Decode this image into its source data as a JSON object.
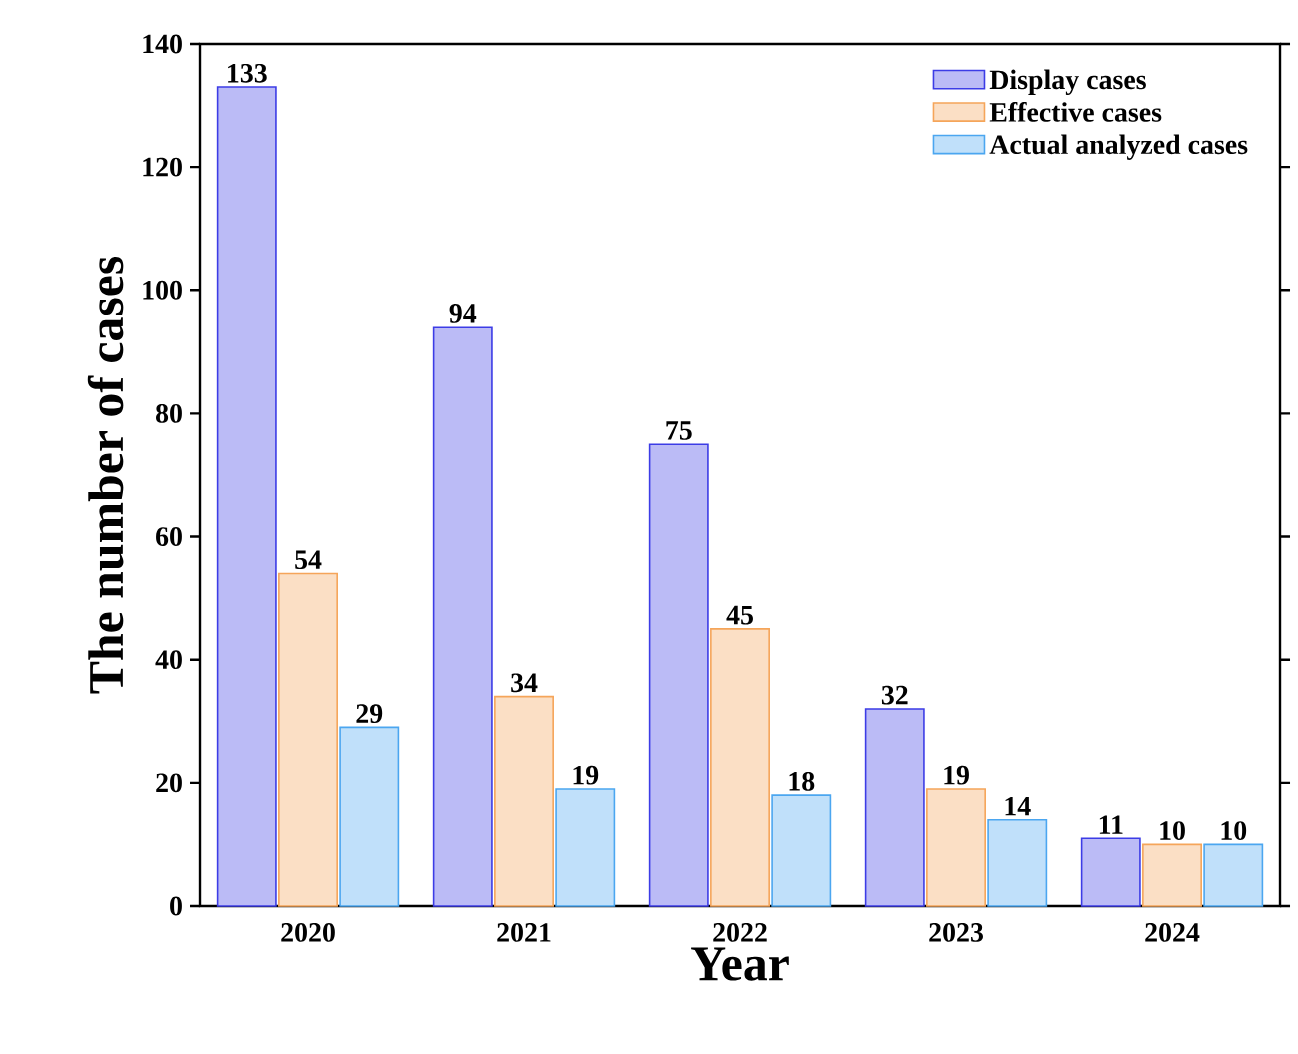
{
  "chart_data": {
    "type": "bar",
    "xlabel": "Year",
    "ylabel": "The number of cases",
    "categories": [
      "2020",
      "2021",
      "2022",
      "2023",
      "2024"
    ],
    "series": [
      {
        "name": "Display cases",
        "color": "#3c3ce6",
        "values": [
          133,
          94,
          75,
          32,
          11
        ]
      },
      {
        "name": "Effective cases",
        "color": "#f5a55a",
        "values": [
          54,
          34,
          45,
          19,
          10
        ]
      },
      {
        "name": "Actual analyzed cases",
        "color": "#4ba6f0",
        "values": [
          29,
          19,
          18,
          14,
          10
        ]
      }
    ],
    "ylim": [
      0,
      140
    ],
    "yticks": [
      0,
      20,
      40,
      60,
      80,
      100,
      120,
      140
    ],
    "data_labels": true,
    "legend": "top right",
    "grid": false
  }
}
